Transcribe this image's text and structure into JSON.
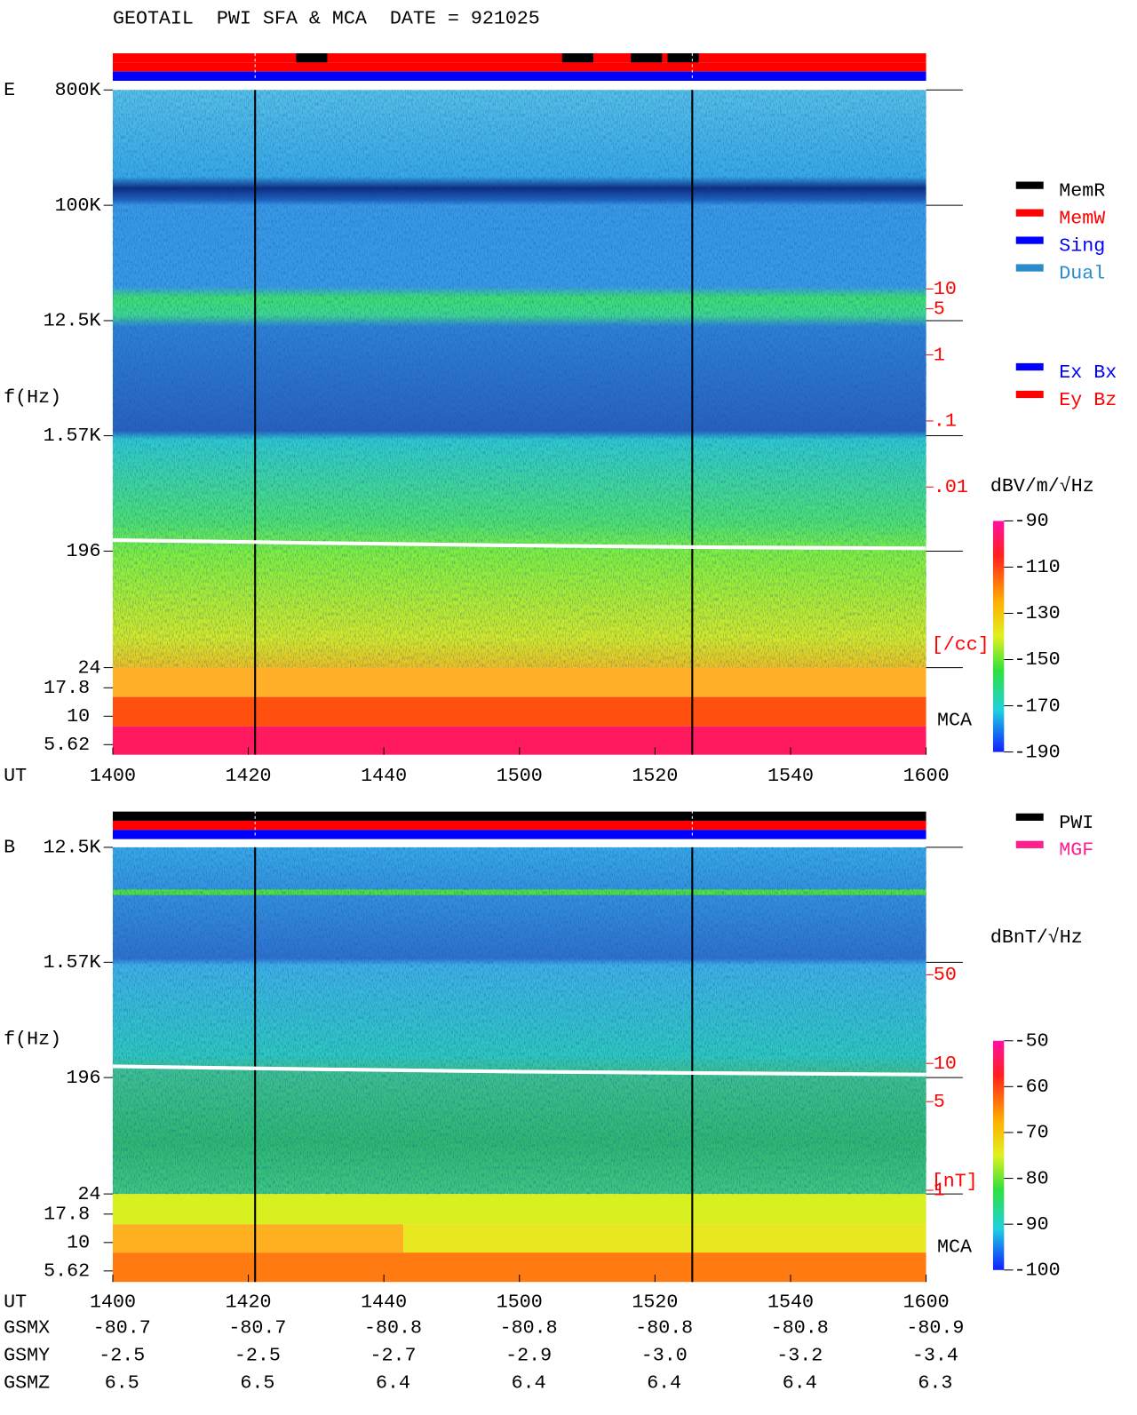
{
  "chart_data": [
    {
      "type": "spectrogram",
      "title": "GEOTAIL  PWI SFA & MCA  DATE = 921025",
      "panel_label": "E",
      "ylabel": "f(Hz)",
      "xlabel": "UT",
      "log_y": true,
      "ylim": [
        24,
        800000
      ],
      "yticks": [
        {
          "value": 800000,
          "label": "800K"
        },
        {
          "value": 100000,
          "label": "100K"
        },
        {
          "value": 12500,
          "label": "12.5K"
        },
        {
          "value": 1570,
          "label": "1.57K"
        },
        196,
        24
      ],
      "mca_label": "MCA",
      "mca_ticks": [
        17.8,
        10,
        5.62
      ],
      "xlim": [
        840,
        960
      ],
      "xticks": [
        {
          "value": 840,
          "label": "1400"
        },
        {
          "value": 860,
          "label": "1420"
        },
        {
          "value": 880,
          "label": "1440"
        },
        {
          "value": 900,
          "label": "1500"
        },
        {
          "value": 920,
          "label": "1520"
        },
        {
          "value": 940,
          "label": "1540"
        },
        {
          "value": 960,
          "label": "1600"
        }
      ],
      "event_lines": [
        861,
        925.5
      ],
      "line": {
        "color": "#ffffff",
        "x": [
          840,
          870,
          900,
          930,
          960
        ],
        "values": [
          239,
          227,
          217,
          210,
          206
        ]
      },
      "colorbar": {
        "label": "dBV/m/√Hz",
        "zlim": [
          -190,
          -90
        ],
        "ticks": [
          -90,
          -110,
          -130,
          -150,
          -170,
          -190
        ]
      },
      "y2lim": [
        0.001,
        10
      ],
      "y2color": "#ff0000",
      "y2label": "[/cc]",
      "y2ticks": [
        10,
        5,
        1,
        {
          "value": 0.1,
          "label": ".1"
        },
        {
          "value": 0.01,
          "label": ".01"
        }
      ],
      "legend": [
        {
          "name": "MemR",
          "color": "#000000"
        },
        {
          "name": "MemW",
          "color": "#ff0000"
        },
        {
          "name": "Sing",
          "color": "#0000ff"
        },
        {
          "name": "Dual",
          "color": "#2a8ccc"
        }
      ],
      "legend2": [
        {
          "name": "Ex Bx",
          "color": "#0000ff"
        },
        {
          "name": "Ey Bz",
          "color": "#ff0000"
        }
      ]
    },
    {
      "type": "spectrogram",
      "panel_label": "B",
      "ylabel": "f(Hz)",
      "xlabel": "UT",
      "log_y": true,
      "ylim": [
        24,
        12500
      ],
      "yticks": [
        {
          "value": 12500,
          "label": "12.5K"
        },
        {
          "value": 1570,
          "label": "1.57K"
        },
        196,
        24
      ],
      "mca_label": "MCA",
      "mca_ticks": [
        17.8,
        10,
        5.62
      ],
      "xlim": [
        840,
        960
      ],
      "xticks": [
        {
          "value": 840,
          "label": "1400"
        },
        {
          "value": 860,
          "label": "1420"
        },
        {
          "value": 880,
          "label": "1440"
        },
        {
          "value": 900,
          "label": "1500"
        },
        {
          "value": 920,
          "label": "1520"
        },
        {
          "value": 940,
          "label": "1540"
        },
        {
          "value": 960,
          "label": "1600"
        }
      ],
      "event_lines": [
        861,
        925.5
      ],
      "line": {
        "color": "#ffffff",
        "x": [
          840,
          870,
          900,
          930,
          960
        ],
        "values": [
          240,
          228,
          218,
          212,
          207
        ]
      },
      "colorbar": {
        "label": "dBnT/√Hz",
        "zlim": [
          -100,
          -50
        ],
        "ticks": [
          -50,
          -60,
          -70,
          -80,
          -90,
          -100
        ]
      },
      "y2lim": [
        1,
        50
      ],
      "y2color": "#ff0000",
      "y2label": "[nT]",
      "y2ticks": [
        50,
        10,
        5,
        1
      ],
      "legend": [
        {
          "name": "PWI",
          "color": "#000000"
        },
        {
          "name": "MGF",
          "color": "#ff1e8c"
        }
      ],
      "orbit": [
        {
          "label": "GSMX",
          "values": [
            -80.7,
            -80.7,
            -80.8,
            -80.8,
            -80.8,
            -80.8,
            -80.9
          ]
        },
        {
          "label": "GSMY",
          "values": [
            -2.5,
            -2.5,
            -2.7,
            -2.9,
            {
              "value": -3,
              "label": "-3.0"
            },
            -3.2,
            -3.4
          ]
        },
        {
          "label": "GSMZ",
          "values": [
            6.5,
            6.5,
            6.4,
            6.4,
            6.4,
            6.4,
            6.3
          ]
        }
      ]
    }
  ]
}
